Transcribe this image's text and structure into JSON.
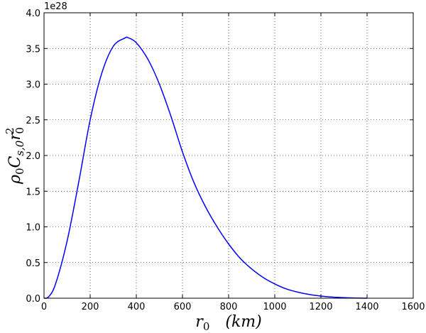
{
  "chart_data": {
    "type": "line",
    "xlabel": {
      "r": "r",
      "r_sub": "0",
      "units": "(km)"
    },
    "ylabel": {
      "rho": "ρ",
      "rho_sub": "0",
      "c": "C",
      "c_sub": "s,0",
      "r": "r",
      "r_sub": "0",
      "r_sup": "2"
    },
    "offset_label": "1e28",
    "xlim": [
      0,
      1600
    ],
    "ylim": [
      0,
      4.0
    ],
    "xticks": [
      0,
      200,
      400,
      600,
      800,
      1000,
      1200,
      1400,
      1600
    ],
    "xtick_labels": [
      "0",
      "200",
      "400",
      "600",
      "800",
      "1000",
      "1200",
      "1400",
      "1600"
    ],
    "yticks": [
      0,
      0.5,
      1.0,
      1.5,
      2.0,
      2.5,
      3.0,
      3.5,
      4.0
    ],
    "ytick_labels": [
      "0.0",
      "0.5",
      "1.0",
      "1.5",
      "2.0",
      "2.5",
      "3.0",
      "3.5",
      "4.0"
    ],
    "grid": true,
    "series": [
      {
        "color": "#0000ff",
        "x": [
          0,
          20,
          50,
          100,
          150,
          200,
          250,
          300,
          350,
          365,
          400,
          450,
          500,
          550,
          600,
          650,
          700,
          750,
          800,
          850,
          900,
          950,
          1000,
          1050,
          1100,
          1150,
          1200,
          1250,
          1300,
          1350,
          1400
        ],
        "y": [
          0,
          0.02,
          0.2,
          0.8,
          1.62,
          2.5,
          3.15,
          3.53,
          3.645,
          3.65,
          3.58,
          3.35,
          3.0,
          2.55,
          2.05,
          1.62,
          1.28,
          1.0,
          0.76,
          0.56,
          0.41,
          0.29,
          0.2,
          0.13,
          0.085,
          0.052,
          0.03,
          0.016,
          0.008,
          0.003,
          0.0
        ]
      }
    ]
  }
}
